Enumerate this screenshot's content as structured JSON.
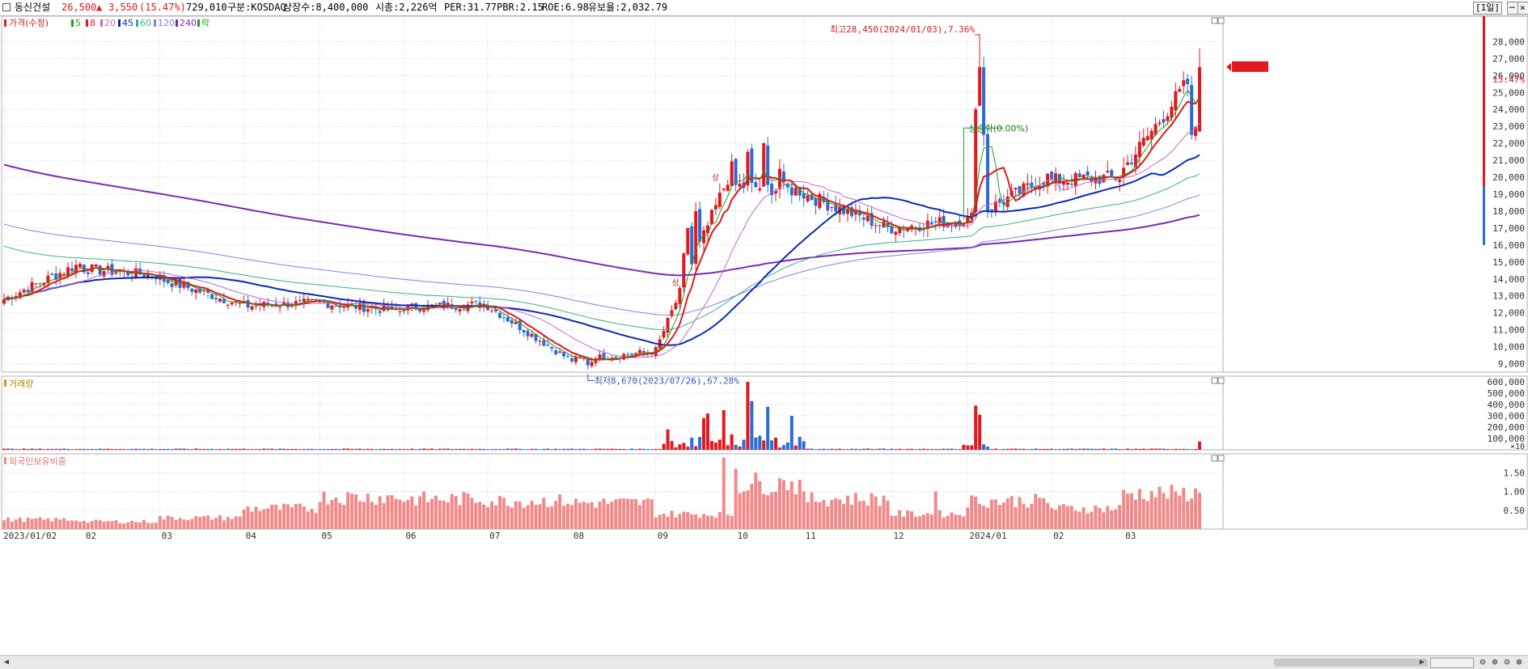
{
  "header": {
    "name": "동신건설",
    "price": "26,500",
    "change_arrow": "▲",
    "change": "3,550",
    "change_pct": "(15.47%)",
    "volume": "729,010",
    "market": "구분:KOSDAQ",
    "shares": "상장수:8,400,000",
    "market_cap": "시총:2,226억",
    "per": "PER:31.77",
    "pbr": "PBR:2.15",
    "roe": "ROE:6.98",
    "float_ratio": "유보율:2,032.79",
    "period": "[1일]"
  },
  "colors": {
    "up": "#e0191f",
    "down": "#2e6bd4",
    "ma5": "#1ea01e",
    "ma8": "#e0191f",
    "ma20": "#c06ac8",
    "ma45": "#0a2bb8",
    "ma60": "#3fae87",
    "ma120": "#7e86e0",
    "ma240": "#7a2ab5",
    "foreign": "#f08a8a",
    "grid": "#d2d2d2"
  },
  "chart_data": [
    {
      "type": "candlestick",
      "title": "",
      "legend": {
        "label": "가격(수정)",
        "items": [
          "5",
          "8",
          "20",
          "45",
          "60",
          "120",
          "240",
          "락"
        ]
      },
      "y_range": [
        8500,
        29500
      ],
      "y_ticks": [
        9000,
        10000,
        11000,
        12000,
        13000,
        14000,
        15000,
        16000,
        17000,
        18000,
        19000,
        20000,
        21000,
        22000,
        23000,
        24000,
        25000,
        26000,
        27000,
        28000
      ],
      "x_ticks": [
        "2023/01/02",
        "02",
        "03",
        "04",
        "05",
        "06",
        "07",
        "08",
        "09",
        "10",
        "11",
        "12",
        "2024/01",
        "02",
        "03"
      ],
      "current_price": "26,500",
      "current_pct": "15.47%",
      "annotations": {
        "high": "최고28,450(2024/01/03),7.36%",
        "low": "최저8,670(2023/07/26),67.28%",
        "limit_up": "상",
        "flat_note": "상승락(0.00%)"
      },
      "monthly_price_path": [
        [
          "2023/01",
          12800,
          14900
        ],
        [
          "2023/02",
          14600,
          14200
        ],
        [
          "2023/03",
          14000,
          12500
        ],
        [
          "2023/04",
          12400,
          12600
        ],
        [
          "2023/05",
          12600,
          12100
        ],
        [
          "2023/06",
          12300,
          12500
        ],
        [
          "2023/07",
          12400,
          9300
        ],
        [
          "2023/08",
          9200,
          9700
        ],
        [
          "2023/09",
          9800,
          20500
        ],
        [
          "2023/10",
          19500,
          19200
        ],
        [
          "2023/11",
          19000,
          17000
        ],
        [
          "2023/12",
          17000,
          17500
        ],
        [
          "2024/01",
          17500,
          20000
        ],
        [
          "2024/02",
          19800,
          20000
        ],
        [
          "2024/03",
          20500,
          26500
        ]
      ]
    },
    {
      "type": "bar",
      "title": "",
      "label": "거래량",
      "unit_note": "×10",
      "y_range": [
        0,
        650000
      ],
      "y_ticks": [
        100000,
        200000,
        300000,
        400000,
        500000,
        600000
      ],
      "spikes": [
        [
          "2023/09 early",
          180000
        ],
        [
          "2023/09 late",
          320000
        ],
        [
          "2023/10 early",
          600000
        ],
        [
          "2023/10 late",
          380000
        ],
        [
          "2024/01 early",
          390000
        ],
        [
          "2024/03 latest",
          73000
        ]
      ],
      "baseline": 5000
    },
    {
      "type": "bar",
      "title": "",
      "label": "외국인보유비중",
      "y_range": [
        0,
        2.0
      ],
      "y_ticks": [
        0.5,
        1.0,
        1.5
      ],
      "monthly_avg": [
        [
          "2023/01",
          0.25
        ],
        [
          "2023/02",
          0.2
        ],
        [
          "2023/03",
          0.3
        ],
        [
          "2023/04",
          0.55
        ],
        [
          "2023/05",
          0.85
        ],
        [
          "2023/06",
          0.8
        ],
        [
          "2023/07",
          0.75
        ],
        [
          "2023/08",
          0.7
        ],
        [
          "2023/09",
          0.4
        ],
        [
          "2023/10",
          1.2
        ],
        [
          "2023/11",
          0.8
        ],
        [
          "2023/12",
          0.4
        ],
        [
          "2024/01",
          0.75
        ],
        [
          "2024/02",
          0.55
        ],
        [
          "2024/03",
          0.95
        ]
      ]
    }
  ]
}
